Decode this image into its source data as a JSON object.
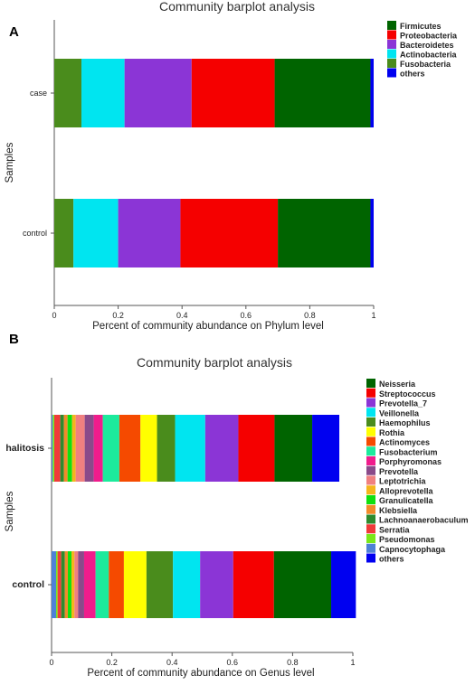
{
  "chart_data": [
    {
      "panel": "A",
      "type": "bar",
      "orientation": "horizontal",
      "stacked": true,
      "title": "Community barplot analysis",
      "xlabel": "Percent of community abundance on Phylum level",
      "ylabel": "Samples",
      "xlim": [
        0,
        1
      ],
      "xticks": [
        "0",
        "0.2",
        "0.4",
        "0.6",
        "0.8",
        "1"
      ],
      "categories": [
        "case",
        "control"
      ],
      "legend_position": "top-right",
      "series": [
        {
          "name": "Fusobacteria",
          "color": "#4a8c1c",
          "values": [
            0.085,
            0.06
          ]
        },
        {
          "name": "Actinobacteria",
          "color": "#00e5f0",
          "values": [
            0.135,
            0.14
          ]
        },
        {
          "name": "Bacteroidetes",
          "color": "#8b35d6",
          "values": [
            0.21,
            0.195
          ]
        },
        {
          "name": "Proteobacteria",
          "color": "#f50000",
          "values": [
            0.26,
            0.305
          ]
        },
        {
          "name": "Firmicutes",
          "color": "#006400",
          "values": [
            0.3,
            0.29
          ]
        },
        {
          "name": "others",
          "color": "#0000f0",
          "values": [
            0.01,
            0.01
          ]
        }
      ],
      "legend_order": [
        "Firmicutes",
        "Proteobacteria",
        "Bacteroidetes",
        "Actinobacteria",
        "Fusobacteria",
        "others"
      ]
    },
    {
      "panel": "B",
      "type": "bar",
      "orientation": "horizontal",
      "stacked": true,
      "title": "Community barplot analysis",
      "xlabel": "Percent of community abundance on Genus level",
      "ylabel": "Samples",
      "xlim": [
        0,
        1
      ],
      "xticks": [
        "0",
        "0.2",
        "0.4",
        "0.6",
        "0.8",
        "1"
      ],
      "categories": [
        "halitosis",
        "control"
      ],
      "legend_position": "top-right",
      "series": [
        {
          "name": "Capnocytophaga",
          "color": "#4f81d6",
          "values": [
            0.004,
            0.015
          ]
        },
        {
          "name": "Pseudomonas",
          "color": "#7ae81a",
          "values": [
            0.005,
            0.005
          ]
        },
        {
          "name": "Serratia",
          "color": "#f03a3a",
          "values": [
            0.02,
            0.012
          ]
        },
        {
          "name": "Lachnoanaerobaculum",
          "color": "#2e8b2e",
          "values": [
            0.012,
            0.012
          ]
        },
        {
          "name": "Klebsiella",
          "color": "#f28a2a",
          "values": [
            0.012,
            0.01
          ]
        },
        {
          "name": "Granulicatella",
          "color": "#10e010",
          "values": [
            0.015,
            0.012
          ]
        },
        {
          "name": "Alloprevotella",
          "color": "#f5b51c",
          "values": [
            0.012,
            0.01
          ]
        },
        {
          "name": "Leptotrichia",
          "color": "#f08080",
          "values": [
            0.03,
            0.012
          ]
        },
        {
          "name": "Prevotella",
          "color": "#8a4a8a",
          "values": [
            0.03,
            0.02
          ]
        },
        {
          "name": "Porphyromonas",
          "color": "#f01c8c",
          "values": [
            0.03,
            0.038
          ]
        },
        {
          "name": "Fusobacterium",
          "color": "#1cea9c",
          "values": [
            0.055,
            0.044
          ]
        },
        {
          "name": "Actinomyces",
          "color": "#f54a00",
          "values": [
            0.07,
            0.05
          ]
        },
        {
          "name": "Rothia",
          "color": "#ffff00",
          "values": [
            0.055,
            0.075
          ]
        },
        {
          "name": "Haemophilus",
          "color": "#4a8c1c",
          "values": [
            0.06,
            0.088
          ]
        },
        {
          "name": "Veillonella",
          "color": "#00e5f0",
          "values": [
            0.1,
            0.09
          ]
        },
        {
          "name": "Prevotella_7",
          "color": "#8b35d6",
          "values": [
            0.11,
            0.11
          ]
        },
        {
          "name": "Streptococcus",
          "color": "#f50000",
          "values": [
            0.12,
            0.135
          ]
        },
        {
          "name": "Neisseria",
          "color": "#006400",
          "values": [
            0.125,
            0.19
          ]
        },
        {
          "name": "others",
          "color": "#0000f0",
          "values": [
            0.09,
            0.082
          ]
        }
      ],
      "legend_order": [
        "Neisseria",
        "Streptococcus",
        "Prevotella_7",
        "Veillonella",
        "Haemophilus",
        "Rothia",
        "Actinomyces",
        "Fusobacterium",
        "Porphyromonas",
        "Prevotella",
        "Leptotrichia",
        "Alloprevotella",
        "Granulicatella",
        "Klebsiella",
        "Lachnoanaerobaculum",
        "Serratia",
        "Pseudomonas",
        "Capnocytophaga",
        "others"
      ]
    }
  ]
}
